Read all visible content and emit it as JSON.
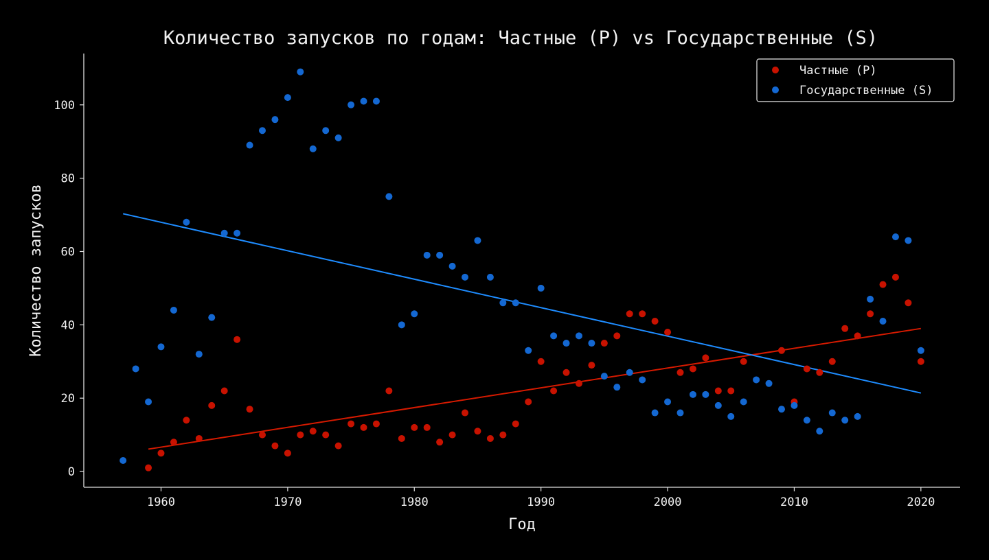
{
  "chart_data": {
    "type": "scatter",
    "title": "Количество запусков по годам: Частные (P) vs Государственные (S)",
    "xlabel": "Год",
    "ylabel": "Количество запусков",
    "xlim": [
      1953.9,
      2023.1
    ],
    "ylim": [
      -4.3,
      114
    ],
    "xticks": [
      1960,
      1970,
      1980,
      1990,
      2000,
      2010,
      2020
    ],
    "yticks": [
      0,
      20,
      40,
      60,
      80,
      100
    ],
    "grid": false,
    "legend_placement": "top-right",
    "series": [
      {
        "name": "Частные (P)",
        "color": "#c81200",
        "trend_color": "#d61a00",
        "x": [
          1959,
          1960,
          1961,
          1962,
          1963,
          1964,
          1965,
          1966,
          1967,
          1968,
          1969,
          1970,
          1971,
          1972,
          1973,
          1974,
          1975,
          1976,
          1977,
          1978,
          1979,
          1980,
          1981,
          1982,
          1983,
          1984,
          1985,
          1986,
          1987,
          1988,
          1989,
          1990,
          1991,
          1992,
          1993,
          1994,
          1995,
          1996,
          1997,
          1998,
          1999,
          2000,
          2001,
          2002,
          2003,
          2004,
          2005,
          2006,
          2009,
          2010,
          2011,
          2012,
          2013,
          2014,
          2015,
          2016,
          2017,
          2018,
          2019,
          2020
        ],
        "y": [
          1,
          5,
          8,
          14,
          9,
          18,
          22,
          36,
          17,
          10,
          7,
          5,
          10,
          11,
          10,
          7,
          13,
          12,
          13,
          22,
          9,
          12,
          12,
          8,
          10,
          16,
          11,
          9,
          10,
          13,
          19,
          30,
          22,
          27,
          24,
          29,
          35,
          37,
          43,
          43,
          41,
          38,
          27,
          28,
          31,
          22,
          22,
          30,
          33,
          19,
          28,
          27,
          30,
          39,
          37,
          43,
          51,
          53,
          46,
          30
        ],
        "trend": {
          "x": [
            1959,
            2020
          ],
          "y": [
            6.1,
            39.0
          ]
        }
      },
      {
        "name": "Государственные (S)",
        "color": "#1468d2",
        "trend_color": "#1e8cff",
        "x": [
          1957,
          1958,
          1959,
          1960,
          1961,
          1962,
          1963,
          1964,
          1965,
          1966,
          1967,
          1968,
          1969,
          1970,
          1971,
          1972,
          1973,
          1974,
          1975,
          1976,
          1977,
          1978,
          1979,
          1980,
          1981,
          1982,
          1983,
          1984,
          1985,
          1986,
          1987,
          1988,
          1989,
          1990,
          1991,
          1992,
          1993,
          1994,
          1995,
          1996,
          1997,
          1998,
          1999,
          2000,
          2001,
          2002,
          2003,
          2004,
          2005,
          2006,
          2007,
          2008,
          2009,
          2010,
          2011,
          2012,
          2013,
          2014,
          2015,
          2016,
          2017,
          2018,
          2019,
          2020
        ],
        "y": [
          3,
          28,
          19,
          34,
          44,
          68,
          32,
          42,
          65,
          65,
          89,
          93,
          96,
          102,
          109,
          88,
          93,
          91,
          100,
          101,
          101,
          75,
          40,
          43,
          59,
          59,
          56,
          53,
          63,
          53,
          46,
          46,
          33,
          50,
          37,
          35,
          37,
          35,
          26,
          23,
          27,
          25,
          16,
          19,
          16,
          21,
          21,
          18,
          15,
          19,
          25,
          24,
          17,
          18,
          14,
          11,
          16,
          14,
          15,
          47,
          41,
          64,
          63,
          33
        ],
        "trend": {
          "x": [
            1957,
            2020
          ],
          "y": [
            70.3,
            21.4
          ]
        }
      }
    ]
  }
}
